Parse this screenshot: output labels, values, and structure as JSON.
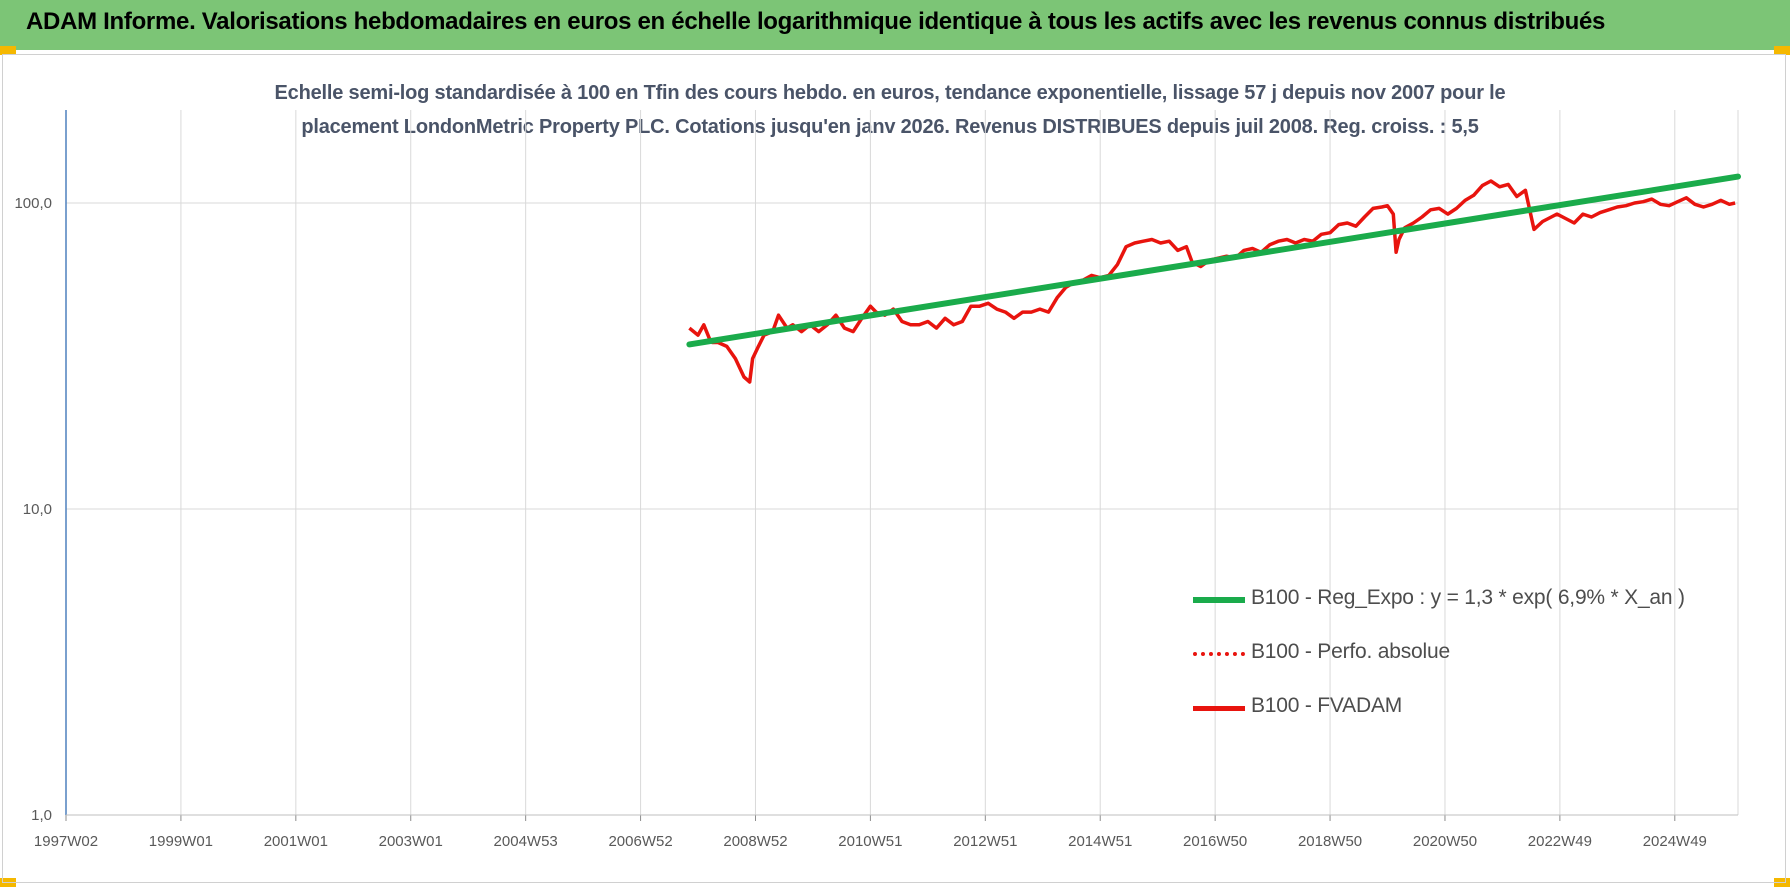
{
  "header": {
    "title": "ADAM Informe. Valorisations hebdomadaires en euros en échelle logarithmique identique à tous les actifs avec les revenus connus distribués"
  },
  "colors": {
    "banner": "#7cc576",
    "accent": "#f5b800",
    "trend": "#1aab4b",
    "performance": "#e8140e",
    "grid": "#d9d9d9",
    "axis": "#4f81bd"
  },
  "chart_data": {
    "type": "line",
    "title_lines": [
      "Echelle semi-log standardisée à 100 en Tfin des cours hebdo. en euros, tendance exponentielle, lissage 57 j depuis nov 2007 pour le",
      "placement LondonMetric Property PLC. Cotations jusqu'en janv 2026. Revenus DISTRIBUES depuis juil 2008. Reg. croiss. : 5,5"
    ],
    "y_scale": "log",
    "ylim": [
      1,
      200
    ],
    "xlim": [
      1997.0,
      2026.1
    ],
    "y_ticks": [
      {
        "value": 1,
        "label": "1,0"
      },
      {
        "value": 10,
        "label": "10,0"
      },
      {
        "value": 100,
        "label": "100,0"
      }
    ],
    "x_ticks": [
      {
        "value": 1997.0,
        "label": "1997W02"
      },
      {
        "value": 1999.0,
        "label": "1999W01"
      },
      {
        "value": 2001.0,
        "label": "2001W01"
      },
      {
        "value": 2003.0,
        "label": "2003W01"
      },
      {
        "value": 2005.0,
        "label": "2004W53"
      },
      {
        "value": 2007.0,
        "label": "2006W52"
      },
      {
        "value": 2009.0,
        "label": "2008W52"
      },
      {
        "value": 2011.0,
        "label": "2010W51"
      },
      {
        "value": 2013.0,
        "label": "2012W51"
      },
      {
        "value": 2015.0,
        "label": "2014W51"
      },
      {
        "value": 2017.0,
        "label": "2016W50"
      },
      {
        "value": 2019.0,
        "label": "2018W50"
      },
      {
        "value": 2021.0,
        "label": "2020W50"
      },
      {
        "value": 2023.0,
        "label": "2022W49"
      },
      {
        "value": 2025.0,
        "label": "2024W49"
      }
    ],
    "grid": true,
    "legend_position": "lower-right",
    "series": [
      {
        "name": "B100 - Reg_Expo : y = 1,3 * exp( 6,9% *  X_an )",
        "style": "solid-thick",
        "color": "#1aab4b",
        "x": [
          2007.85,
          2026.1
        ],
        "y": [
          34.5,
          122
        ]
      },
      {
        "name": "B100 - Perfo. absolue",
        "style": "dotted",
        "color": "#e8140e",
        "x": [],
        "y": []
      },
      {
        "name": "B100 - FVADAM",
        "style": "solid",
        "color": "#e8140e",
        "x": [
          2007.85,
          2008.0,
          2008.1,
          2008.2,
          2008.25,
          2008.35,
          2008.5,
          2008.65,
          2008.8,
          2008.9,
          2008.95,
          2009.05,
          2009.15,
          2009.3,
          2009.4,
          2009.55,
          2009.65,
          2009.8,
          2009.95,
          2010.1,
          2010.25,
          2010.4,
          2010.55,
          2010.7,
          2010.85,
          2011.0,
          2011.1,
          2011.25,
          2011.4,
          2011.55,
          2011.7,
          2011.85,
          2012.0,
          2012.15,
          2012.3,
          2012.45,
          2012.6,
          2012.75,
          2012.9,
          2013.05,
          2013.2,
          2013.35,
          2013.5,
          2013.65,
          2013.8,
          2013.95,
          2014.1,
          2014.25,
          2014.4,
          2014.55,
          2014.7,
          2014.85,
          2015.0,
          2015.15,
          2015.3,
          2015.45,
          2015.6,
          2015.75,
          2015.9,
          2016.05,
          2016.2,
          2016.35,
          2016.5,
          2016.6,
          2016.75,
          2016.9,
          2017.05,
          2017.2,
          2017.35,
          2017.5,
          2017.65,
          2017.8,
          2017.95,
          2018.1,
          2018.25,
          2018.4,
          2018.55,
          2018.7,
          2018.85,
          2019.0,
          2019.15,
          2019.3,
          2019.45,
          2019.6,
          2019.75,
          2019.9,
          2020.0,
          2020.1,
          2020.15,
          2020.2,
          2020.3,
          2020.45,
          2020.6,
          2020.75,
          2020.9,
          2021.05,
          2021.2,
          2021.35,
          2021.5,
          2021.65,
          2021.8,
          2021.95,
          2022.1,
          2022.25,
          2022.4,
          2022.55,
          2022.7,
          2022.85,
          2022.95,
          2023.1,
          2023.25,
          2023.4,
          2023.55,
          2023.7,
          2023.85,
          2024.0,
          2024.15,
          2024.3,
          2024.45,
          2024.6,
          2024.75,
          2024.9,
          2025.05,
          2025.2,
          2025.35,
          2025.5,
          2025.65,
          2025.8,
          2025.95,
          2026.05
        ],
        "y": [
          39,
          37,
          40,
          36,
          35,
          35,
          34,
          31,
          27,
          26,
          31,
          34,
          37,
          38,
          43,
          39,
          40,
          38,
          40,
          38,
          40,
          43,
          39,
          38,
          42,
          46,
          44,
          43,
          45,
          41,
          40,
          40,
          41,
          39,
          42,
          40,
          41,
          46,
          46,
          47,
          45,
          44,
          42,
          44,
          44,
          45,
          44,
          49,
          53,
          55,
          56,
          58,
          57,
          58,
          63,
          72,
          74,
          75,
          76,
          74,
          75,
          70,
          72,
          64,
          62,
          65,
          66,
          67,
          66,
          70,
          71,
          69,
          73,
          75,
          76,
          74,
          76,
          75,
          79,
          80,
          85,
          86,
          84,
          90,
          96,
          97,
          98,
          92,
          69,
          76,
          83,
          86,
          90,
          95,
          96,
          92,
          96,
          102,
          106,
          114,
          118,
          113,
          115,
          105,
          110,
          82,
          87,
          90,
          92,
          89,
          86,
          92,
          90,
          93,
          95,
          97,
          98,
          100,
          101,
          103,
          99,
          98,
          101,
          104,
          99,
          97,
          99,
          102,
          99,
          100
        ]
      }
    ]
  }
}
